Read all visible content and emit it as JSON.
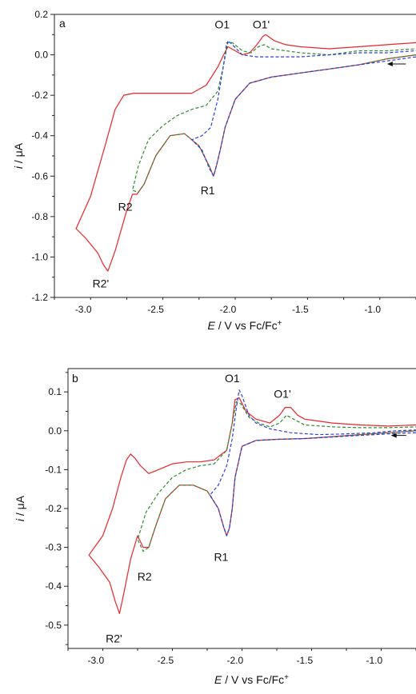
{
  "colors": {
    "red": "#e8262a",
    "green": "#2e8b2e",
    "blue": "#2a3fe0",
    "axis": "#222222"
  },
  "chart_data": [
    {
      "type": "line",
      "panel_label": "a",
      "xlabel_prefix": "E",
      "xlabel_rest": " / V vs Fc/Fc",
      "xlabel_sup": "+",
      "ylabel_prefix": "i",
      "ylabel_rest": " / μA",
      "xlim": [
        -3.2,
        -0.7
      ],
      "ylim": [
        -1.2,
        0.2
      ],
      "x_ticks": [
        -3.0,
        -2.5,
        -2.0,
        -1.5,
        -1.0
      ],
      "x_tick_labels": [
        "-3.0",
        "-2.5",
        "-2.0",
        "-1.5",
        "-1.0"
      ],
      "y_ticks": [
        -1.2,
        -1.0,
        -0.8,
        -0.6,
        -0.4,
        -0.2,
        0.0,
        0.2
      ],
      "y_tick_labels": [
        "-1.2",
        "-1.0",
        "-0.8",
        "-0.6",
        "-0.4",
        "-0.2",
        "0.0",
        "0.2"
      ],
      "annotations": [
        {
          "text": "O1",
          "x": -2.04,
          "y": 0.13
        },
        {
          "text": "O1'",
          "x": -1.77,
          "y": 0.13
        },
        {
          "text": "R1",
          "x": -2.14,
          "y": -0.69
        },
        {
          "text": "R2",
          "x": -2.71,
          "y": -0.77
        },
        {
          "text": "R2'",
          "x": -2.88,
          "y": -1.15
        }
      ],
      "arrow": {
        "x": [
          -0.77,
          -0.9
        ],
        "y": [
          -0.045,
          -0.045
        ]
      },
      "series": [
        {
          "style": "solid",
          "color": "red",
          "x": [
            -0.7,
            -0.9,
            -1.1,
            -1.3,
            -1.5,
            -1.7,
            -1.85,
            -1.95,
            -2.02,
            -2.05,
            -2.08,
            -2.1,
            -2.13,
            -2.2,
            -2.3,
            -2.4,
            -2.5,
            -2.58,
            -2.63,
            -2.66,
            -2.7,
            -2.78,
            -2.83,
            -2.86,
            -2.9,
            -2.98,
            -3.05,
            -2.95,
            -2.85,
            -2.78,
            -2.72,
            -2.65,
            -2.55,
            -2.45,
            -2.35,
            -2.25,
            -2.15,
            -2.07,
            -2.03,
            -2.0,
            -1.95,
            -1.9,
            -1.85,
            -1.8,
            -1.76,
            -1.74,
            -1.72,
            -1.68,
            -1.6,
            -1.5,
            -1.3,
            -1.1,
            -0.9,
            -0.7
          ],
          "y": [
            0.0,
            -0.02,
            -0.05,
            -0.07,
            -0.09,
            -0.11,
            -0.14,
            -0.22,
            -0.36,
            -0.46,
            -0.55,
            -0.6,
            -0.55,
            -0.45,
            -0.39,
            -0.4,
            -0.5,
            -0.64,
            -0.69,
            -0.69,
            -0.77,
            -0.97,
            -1.07,
            -1.04,
            -0.98,
            -0.91,
            -0.86,
            -0.7,
            -0.45,
            -0.27,
            -0.2,
            -0.19,
            -0.19,
            -0.19,
            -0.19,
            -0.19,
            -0.15,
            -0.06,
            0.0,
            0.04,
            0.02,
            0.0,
            0.01,
            0.05,
            0.09,
            0.1,
            0.09,
            0.07,
            0.05,
            0.04,
            0.03,
            0.04,
            0.05,
            0.06
          ]
        },
        {
          "style": "dashed",
          "color": "green",
          "x": [
            -0.7,
            -0.9,
            -1.1,
            -1.3,
            -1.5,
            -1.7,
            -1.85,
            -1.95,
            -2.02,
            -2.05,
            -2.08,
            -2.1,
            -2.13,
            -2.2,
            -2.3,
            -2.4,
            -2.5,
            -2.58,
            -2.62,
            -2.66,
            -2.62,
            -2.55,
            -2.45,
            -2.35,
            -2.25,
            -2.15,
            -2.07,
            -2.03,
            -2.01,
            -1.97,
            -1.9,
            -1.84,
            -1.79,
            -1.75,
            -1.7,
            -1.6,
            -1.5,
            -1.3,
            -1.1,
            -0.9,
            -0.7
          ],
          "y": [
            0.0,
            -0.02,
            -0.05,
            -0.07,
            -0.09,
            -0.11,
            -0.14,
            -0.22,
            -0.36,
            -0.46,
            -0.55,
            -0.6,
            -0.55,
            -0.45,
            -0.39,
            -0.4,
            -0.5,
            -0.64,
            -0.68,
            -0.67,
            -0.55,
            -0.42,
            -0.35,
            -0.3,
            -0.27,
            -0.25,
            -0.18,
            -0.05,
            0.06,
            0.06,
            0.02,
            0.01,
            0.04,
            0.05,
            0.03,
            0.02,
            0.01,
            0.0,
            0.02,
            0.02,
            0.03
          ]
        },
        {
          "style": "dashed",
          "color": "blue",
          "x": [
            -0.7,
            -0.9,
            -1.1,
            -1.3,
            -1.5,
            -1.7,
            -1.85,
            -1.95,
            -2.02,
            -2.05,
            -2.08,
            -2.1,
            -2.13,
            -2.18,
            -2.25,
            -2.18,
            -2.12,
            -2.07,
            -2.03,
            -2.0,
            -1.97,
            -1.9,
            -1.8,
            -1.7,
            -1.5,
            -1.3,
            -1.1,
            -0.9,
            -0.7
          ],
          "y": [
            -0.01,
            -0.03,
            -0.05,
            -0.07,
            -0.09,
            -0.11,
            -0.14,
            -0.22,
            -0.36,
            -0.46,
            -0.55,
            -0.6,
            -0.56,
            -0.47,
            -0.42,
            -0.4,
            -0.36,
            -0.22,
            -0.05,
            0.07,
            0.05,
            0.0,
            -0.01,
            -0.01,
            -0.01,
            0.0,
            0.01,
            0.01,
            0.02
          ]
        }
      ]
    },
    {
      "type": "line",
      "panel_label": "b",
      "xlabel_prefix": "E",
      "xlabel_rest": " / V vs Fc/Fc",
      "xlabel_sup": "+",
      "ylabel_prefix": "i",
      "ylabel_rest": " / μA",
      "xlim": [
        -3.2,
        -0.7
      ],
      "ylim": [
        -0.56,
        0.16
      ],
      "x_ticks": [
        -3.0,
        -2.5,
        -2.0,
        -1.5,
        -1.0
      ],
      "x_tick_labels": [
        "-3.0",
        "-2.5",
        "-2.0",
        "-1.5",
        "-1.0"
      ],
      "y_ticks": [
        -0.5,
        -0.4,
        -0.3,
        -0.2,
        -0.1,
        0.0,
        0.1
      ],
      "y_tick_labels": [
        "-0.5",
        "-0.4",
        "-0.3",
        "-0.2",
        "-0.1",
        "0.0",
        "0.1"
      ],
      "annotations": [
        {
          "text": "O1",
          "x": -2.02,
          "y": 0.125
        },
        {
          "text": "O1'",
          "x": -1.66,
          "y": 0.085
        },
        {
          "text": "R1",
          "x": -2.1,
          "y": -0.335
        },
        {
          "text": "R2",
          "x": -2.65,
          "y": -0.385
        },
        {
          "text": "R2'",
          "x": -2.87,
          "y": -0.545
        }
      ],
      "arrow": {
        "x": [
          -0.77,
          -0.88
        ],
        "y": [
          -0.012,
          -0.012
        ]
      },
      "series": [
        {
          "style": "solid",
          "color": "red",
          "x": [
            -0.7,
            -0.9,
            -1.1,
            -1.3,
            -1.5,
            -1.7,
            -1.85,
            -1.95,
            -2.0,
            -2.02,
            -2.04,
            -2.06,
            -2.08,
            -2.12,
            -2.2,
            -2.3,
            -2.4,
            -2.5,
            -2.57,
            -2.62,
            -2.66,
            -2.7,
            -2.75,
            -2.8,
            -2.83,
            -2.86,
            -2.9,
            -2.98,
            -3.05,
            -2.95,
            -2.88,
            -2.82,
            -2.78,
            -2.75,
            -2.72,
            -2.68,
            -2.62,
            -2.55,
            -2.45,
            -2.35,
            -2.25,
            -2.15,
            -2.06,
            -2.02,
            -2.0,
            -1.97,
            -1.92,
            -1.85,
            -1.75,
            -1.68,
            -1.64,
            -1.6,
            -1.55,
            -1.5,
            -1.3,
            -1.1,
            -0.9,
            -0.7
          ],
          "y": [
            0.0,
            -0.005,
            -0.01,
            -0.015,
            -0.02,
            -0.022,
            -0.025,
            -0.04,
            -0.12,
            -0.2,
            -0.25,
            -0.27,
            -0.25,
            -0.2,
            -0.155,
            -0.14,
            -0.14,
            -0.175,
            -0.245,
            -0.3,
            -0.3,
            -0.27,
            -0.33,
            -0.42,
            -0.47,
            -0.44,
            -0.39,
            -0.35,
            -0.32,
            -0.27,
            -0.2,
            -0.12,
            -0.075,
            -0.06,
            -0.07,
            -0.09,
            -0.11,
            -0.1,
            -0.085,
            -0.08,
            -0.08,
            -0.075,
            -0.05,
            0.02,
            0.08,
            0.085,
            0.05,
            0.03,
            0.02,
            0.04,
            0.06,
            0.06,
            0.04,
            0.03,
            0.02,
            0.015,
            0.012,
            0.015
          ]
        },
        {
          "style": "dashed",
          "color": "green",
          "x": [
            -0.7,
            -0.9,
            -1.1,
            -1.3,
            -1.5,
            -1.7,
            -1.85,
            -1.95,
            -2.0,
            -2.02,
            -2.04,
            -2.06,
            -2.08,
            -2.12,
            -2.2,
            -2.3,
            -2.4,
            -2.5,
            -2.57,
            -2.62,
            -2.66,
            -2.7,
            -2.64,
            -2.55,
            -2.45,
            -2.35,
            -2.25,
            -2.15,
            -2.06,
            -2.02,
            -1.99,
            -1.96,
            -1.9,
            -1.83,
            -1.75,
            -1.68,
            -1.63,
            -1.58,
            -1.5,
            -1.3,
            -1.1,
            -0.9,
            -0.7
          ],
          "y": [
            0.0,
            -0.005,
            -0.01,
            -0.015,
            -0.02,
            -0.022,
            -0.025,
            -0.04,
            -0.12,
            -0.2,
            -0.25,
            -0.27,
            -0.25,
            -0.2,
            -0.155,
            -0.14,
            -0.14,
            -0.175,
            -0.245,
            -0.3,
            -0.31,
            -0.28,
            -0.21,
            -0.16,
            -0.12,
            -0.1,
            -0.09,
            -0.085,
            -0.05,
            0.02,
            0.075,
            0.07,
            0.035,
            0.02,
            0.01,
            0.02,
            0.04,
            0.03,
            0.015,
            0.01,
            0.008,
            0.008,
            0.01
          ]
        },
        {
          "style": "dashed",
          "color": "blue",
          "x": [
            -0.7,
            -0.9,
            -1.1,
            -1.3,
            -1.5,
            -1.7,
            -1.85,
            -1.95,
            -2.0,
            -2.02,
            -2.04,
            -2.06,
            -2.08,
            -2.12,
            -2.18,
            -2.12,
            -2.06,
            -2.02,
            -1.99,
            -1.97,
            -1.95,
            -1.9,
            -1.85,
            -1.75,
            -1.6,
            -1.4,
            -1.2,
            -1.0,
            -0.85,
            -0.7
          ],
          "y": [
            -0.005,
            -0.008,
            -0.012,
            -0.016,
            -0.02,
            -0.022,
            -0.025,
            -0.04,
            -0.12,
            -0.2,
            -0.25,
            -0.27,
            -0.25,
            -0.2,
            -0.165,
            -0.14,
            -0.09,
            -0.02,
            0.06,
            0.105,
            0.09,
            0.04,
            0.02,
            0.005,
            -0.005,
            -0.01,
            -0.008,
            -0.005,
            0.0,
            0.002
          ]
        }
      ]
    }
  ]
}
